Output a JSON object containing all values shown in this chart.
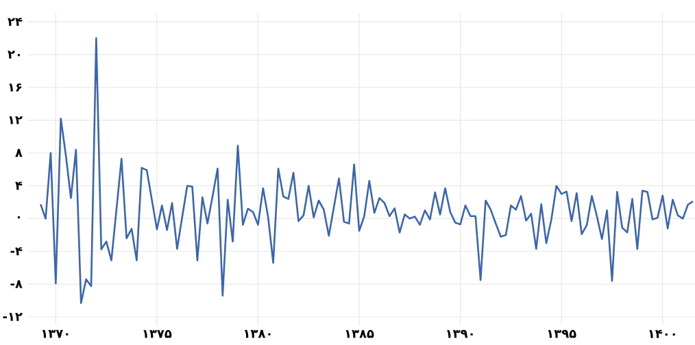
{
  "chart_data": {
    "type": "line",
    "color": "#3a66b0",
    "grid": true,
    "x": [
      1369.25,
      1369.5,
      1369.75,
      1370,
      1370.25,
      1370.5,
      1370.75,
      1371,
      1371.25,
      1371.5,
      1371.75,
      1372,
      1372.25,
      1372.5,
      1372.75,
      1373,
      1373.25,
      1373.5,
      1373.75,
      1374,
      1374.25,
      1374.5,
      1374.75,
      1375,
      1375.25,
      1375.5,
      1375.75,
      1376,
      1376.25,
      1376.5,
      1376.75,
      1377,
      1377.25,
      1377.5,
      1377.75,
      1378,
      1378.25,
      1378.5,
      1378.75,
      1379,
      1379.25,
      1379.5,
      1379.75,
      1380,
      1380.25,
      1380.5,
      1380.75,
      1381,
      1381.25,
      1381.5,
      1381.75,
      1382,
      1382.25,
      1382.5,
      1382.75,
      1383,
      1383.25,
      1383.5,
      1383.75,
      1384,
      1384.25,
      1384.5,
      1384.75,
      1385,
      1385.25,
      1385.5,
      1385.75,
      1386,
      1386.25,
      1386.5,
      1386.75,
      1387,
      1387.25,
      1387.5,
      1387.75,
      1388,
      1388.25,
      1388.5,
      1388.75,
      1389,
      1389.25,
      1389.5,
      1389.75,
      1390,
      1390.25,
      1390.5,
      1390.75,
      1391,
      1391.25,
      1391.5,
      1391.75,
      1392,
      1392.25,
      1392.5,
      1392.75,
      1393,
      1393.25,
      1393.5,
      1393.75,
      1394,
      1394.25,
      1394.5,
      1394.75,
      1395,
      1395.25,
      1395.5,
      1395.75,
      1396,
      1396.25,
      1396.5,
      1396.75,
      1397,
      1397.25,
      1397.5,
      1397.75,
      1398,
      1398.25,
      1398.5,
      1398.75,
      1399,
      1399.25,
      1399.5,
      1399.75,
      1400,
      1400.25,
      1400.5,
      1400.75,
      1401,
      1401.25,
      1401.5
    ],
    "values": [
      1.75,
      0,
      8.0,
      -7.9,
      12.2,
      7.7,
      2.5,
      8.4,
      -10.3,
      -7.4,
      -8.25,
      22.0,
      -3.75,
      -2.8,
      -5.1,
      1.1,
      7.3,
      -2.4,
      -1.25,
      -5.1,
      6.2,
      5.9,
      2.3,
      -1.3,
      1.6,
      -1.4,
      1.9,
      -3.7,
      0.2,
      4.0,
      3.9,
      -5.1,
      2.6,
      -0.6,
      2.7,
      6.1,
      -9.4,
      2.3,
      -2.8,
      8.9,
      -0.75,
      1.2,
      0.8,
      -0.75,
      3.7,
      0.15,
      -5.4,
      6.1,
      2.7,
      2.4,
      5.6,
      -0.3,
      0.4,
      4.0,
      0.15,
      2.2,
      1.1,
      -2.1,
      1.4,
      4.9,
      -0.4,
      -0.6,
      6.6,
      -1.5,
      0.3,
      4.6,
      0.7,
      2.5,
      1.9,
      0.3,
      1.25,
      -1.7,
      0.5,
      0,
      0.25,
      -0.75,
      1.0,
      -0.1,
      3.2,
      0.5,
      3.7,
      0.8,
      -0.5,
      -0.7,
      1.6,
      0.3,
      0.3,
      -7.5,
      2.2,
      1.1,
      -0.6,
      -2.2,
      -2.0,
      1.6,
      1.1,
      2.75,
      -0.25,
      0.6,
      -3.7,
      1.75,
      -3.0,
      -0.1,
      4.0,
      3.0,
      3.3,
      -0.3,
      3.1,
      -1.9,
      -0.8,
      2.75,
      0.3,
      -2.5,
      1.0,
      -7.6,
      3.25,
      -1.1,
      -1.7,
      2.4,
      -3.7,
      3.4,
      3.25,
      -0.1,
      0.1,
      2.8,
      -1.2,
      2.3,
      0.4,
      0,
      1.7,
      2.1
    ],
    "xlim": [
      1368.6,
      1401.6
    ],
    "ylim": [
      -13,
      25
    ],
    "xticks": [
      {
        "value": 1370,
        "label": "۱۳۷۰"
      },
      {
        "value": 1375,
        "label": "۱۳۷۵"
      },
      {
        "value": 1380,
        "label": "۱۳۸۰"
      },
      {
        "value": 1385,
        "label": "۱۳۸۵"
      },
      {
        "value": 1390,
        "label": "۱۳۹۰"
      },
      {
        "value": 1395,
        "label": "۱۳۹۵"
      },
      {
        "value": 1400,
        "label": "۱۴۰۰"
      }
    ],
    "yticks": [
      {
        "value": -12,
        "label": "-۱۲"
      },
      {
        "value": -8,
        "label": "-۸"
      },
      {
        "value": -4,
        "label": "-۴"
      },
      {
        "value": 0,
        "label": "۰"
      },
      {
        "value": 4,
        "label": "۴"
      },
      {
        "value": 8,
        "label": "۸"
      },
      {
        "value": 12,
        "label": "۱۲"
      },
      {
        "value": 16,
        "label": "۱۶"
      },
      {
        "value": 20,
        "label": "۲۰"
      },
      {
        "value": 24,
        "label": "۲۴"
      }
    ]
  }
}
